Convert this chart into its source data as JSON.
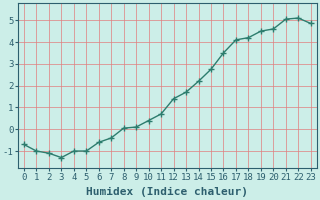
{
  "x": [
    0,
    1,
    2,
    3,
    4,
    5,
    6,
    7,
    8,
    9,
    10,
    11,
    12,
    13,
    14,
    15,
    16,
    17,
    18,
    19,
    20,
    21,
    22,
    23
  ],
  "y": [
    -0.7,
    -1.0,
    -1.1,
    -1.3,
    -1.0,
    -1.0,
    -0.6,
    -0.4,
    0.05,
    0.1,
    0.4,
    0.7,
    1.4,
    1.7,
    2.2,
    2.75,
    3.5,
    4.1,
    4.2,
    4.5,
    4.6,
    5.05,
    5.1,
    4.85
  ],
  "line_color": "#2d7d6e",
  "marker": "+",
  "markersize": 4,
  "linewidth": 1.0,
  "bg_color": "#cceee8",
  "grid_color": "#e08080",
  "xlabel": "Humidex (Indice chaleur)",
  "ylabel": "",
  "xlim": [
    -0.5,
    23.5
  ],
  "ylim": [
    -1.8,
    5.8
  ],
  "xticks": [
    0,
    1,
    2,
    3,
    4,
    5,
    6,
    7,
    8,
    9,
    10,
    11,
    12,
    13,
    14,
    15,
    16,
    17,
    18,
    19,
    20,
    21,
    22,
    23
  ],
  "yticks": [
    -1,
    0,
    1,
    2,
    3,
    4,
    5
  ],
  "tick_fontsize": 6.5,
  "xlabel_fontsize": 8,
  "tick_color": "#2d5f6e",
  "axis_color": "#2d5f6e"
}
